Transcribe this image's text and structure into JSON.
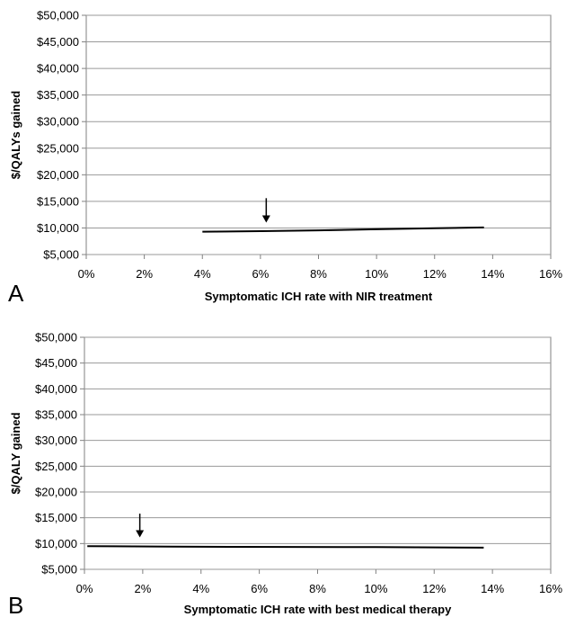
{
  "chart_data": [
    {
      "type": "line",
      "panel_label": "A",
      "title": "",
      "xlabel": "Symptomatic ICH rate with NIR treatment",
      "ylabel": "$/QALYs gained",
      "xlim": [
        0,
        16
      ],
      "ylim": [
        5000,
        50000
      ],
      "x_ticks": [
        "0%",
        "2%",
        "4%",
        "6%",
        "8%",
        "10%",
        "12%",
        "14%",
        "16%"
      ],
      "y_ticks": [
        "$5,000",
        "$10,000",
        "$15,000",
        "$20,000",
        "$25,000",
        "$30,000",
        "$35,000",
        "$40,000",
        "$45,000",
        "$50,000"
      ],
      "grid": "horizontal",
      "legend": "none",
      "series": [
        {
          "x": [
            4,
            6,
            8,
            10,
            12,
            13.7
          ],
          "y": [
            9300,
            9400,
            9550,
            9750,
            9950,
            10100
          ]
        }
      ],
      "annotations": [
        {
          "type": "arrow",
          "x": 6.2,
          "y_from": 15600,
          "y_to": 11000
        }
      ]
    },
    {
      "type": "line",
      "panel_label": "B",
      "title": "",
      "xlabel": "Symptomatic ICH rate with best medical therapy",
      "ylabel": "$/QALY gained",
      "xlim": [
        0,
        16
      ],
      "ylim": [
        5000,
        50000
      ],
      "x_ticks": [
        "0%",
        "2%",
        "4%",
        "6%",
        "8%",
        "10%",
        "12%",
        "14%",
        "16%"
      ],
      "y_ticks": [
        "$5,000",
        "$10,000",
        "$15,000",
        "$20,000",
        "$25,000",
        "$30,000",
        "$35,000",
        "$40,000",
        "$45,000",
        "$50,000"
      ],
      "grid": "horizontal",
      "legend": "none",
      "series": [
        {
          "x": [
            0.1,
            3,
            7,
            10,
            13.7
          ],
          "y": [
            9500,
            9400,
            9350,
            9300,
            9200
          ]
        }
      ],
      "annotations": [
        {
          "type": "arrow",
          "x": 1.9,
          "y_from": 15800,
          "y_to": 11200
        }
      ]
    }
  ]
}
